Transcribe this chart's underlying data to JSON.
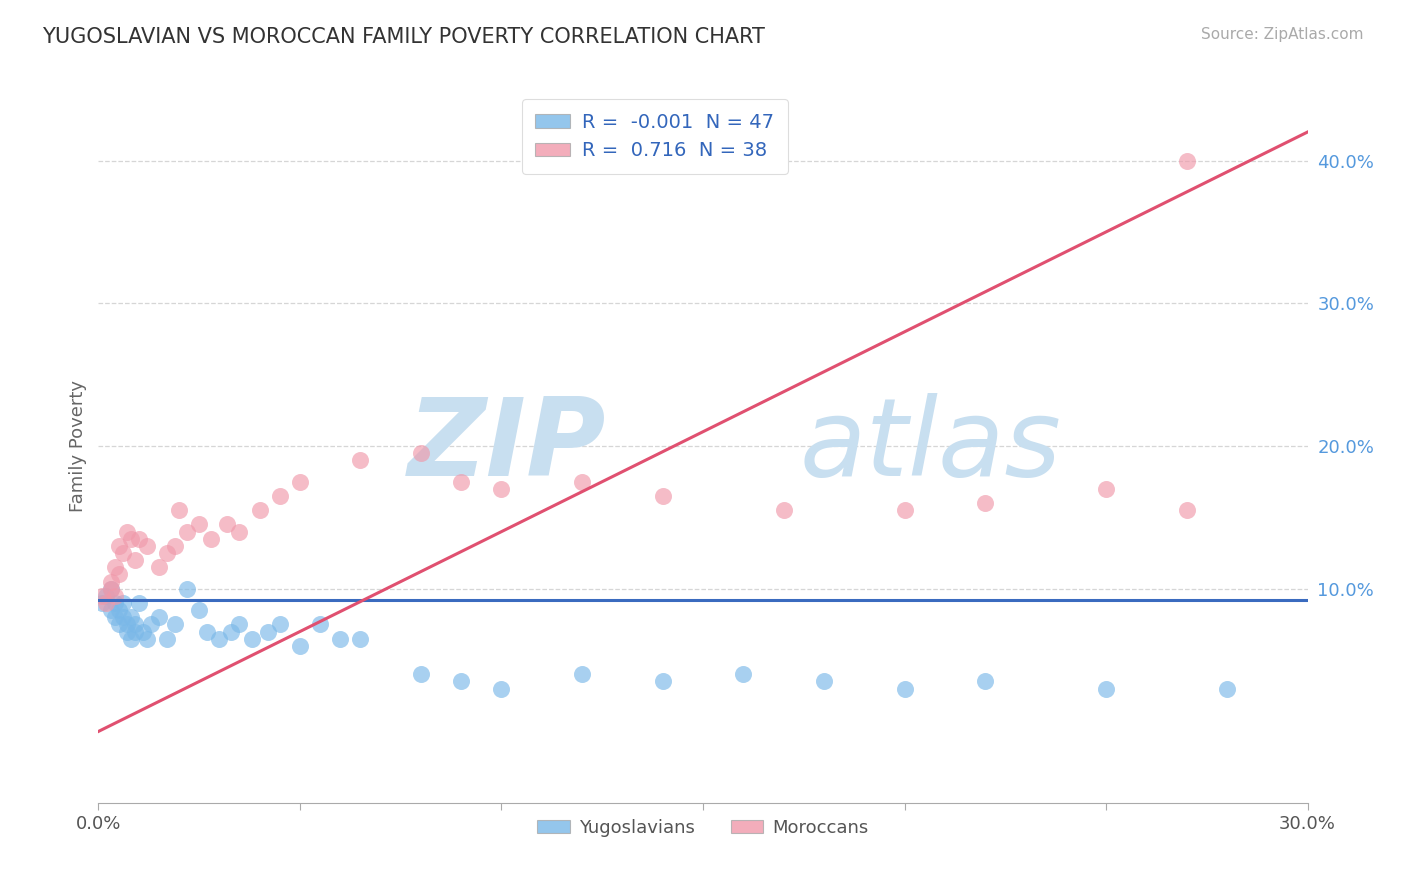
{
  "title": "YUGOSLAVIAN VS MOROCCAN FAMILY POVERTY CORRELATION CHART",
  "source": "Source: ZipAtlas.com",
  "ylabel": "Family Poverty",
  "xlim": [
    0.0,
    0.3
  ],
  "ylim": [
    -0.05,
    0.45
  ],
  "background_color": "#ffffff",
  "grid_color": "#cccccc",
  "yugoslavian_color": "#7ab8e8",
  "moroccan_color": "#f099aa",
  "trendline_yug_color": "#3a6bbf",
  "trendline_mor_color": "#e05070",
  "watermark_zip": "ZIP",
  "watermark_atlas": "atlas",
  "watermark_color": "#c8dff0",
  "r_yug": -0.001,
  "r_mor": 0.716,
  "n_yug": 47,
  "n_mor": 38,
  "trendline_yug": [
    0.0,
    0.3,
    0.092,
    0.092
  ],
  "trendline_mor": [
    0.0,
    0.3,
    0.0,
    0.42
  ],
  "yugoslavian_x": [
    0.001,
    0.002,
    0.003,
    0.003,
    0.004,
    0.004,
    0.005,
    0.005,
    0.006,
    0.006,
    0.007,
    0.007,
    0.008,
    0.008,
    0.009,
    0.009,
    0.01,
    0.011,
    0.012,
    0.013,
    0.015,
    0.017,
    0.019,
    0.022,
    0.025,
    0.027,
    0.03,
    0.033,
    0.035,
    0.038,
    0.042,
    0.045,
    0.05,
    0.055,
    0.06,
    0.065,
    0.08,
    0.09,
    0.1,
    0.12,
    0.14,
    0.16,
    0.18,
    0.2,
    0.22,
    0.25,
    0.28
  ],
  "yugoslavian_y": [
    0.09,
    0.095,
    0.085,
    0.1,
    0.09,
    0.08,
    0.075,
    0.085,
    0.09,
    0.08,
    0.075,
    0.07,
    0.08,
    0.065,
    0.07,
    0.075,
    0.09,
    0.07,
    0.065,
    0.075,
    0.08,
    0.065,
    0.075,
    0.1,
    0.085,
    0.07,
    0.065,
    0.07,
    0.075,
    0.065,
    0.07,
    0.075,
    0.06,
    0.075,
    0.065,
    0.065,
    0.04,
    0.035,
    0.03,
    0.04,
    0.035,
    0.04,
    0.035,
    0.03,
    0.035,
    0.03,
    0.03
  ],
  "moroccan_x": [
    0.001,
    0.002,
    0.003,
    0.003,
    0.004,
    0.004,
    0.005,
    0.005,
    0.006,
    0.007,
    0.008,
    0.009,
    0.01,
    0.012,
    0.015,
    0.017,
    0.019,
    0.02,
    0.022,
    0.025,
    0.028,
    0.032,
    0.035,
    0.04,
    0.045,
    0.05,
    0.065,
    0.08,
    0.09,
    0.1,
    0.12,
    0.14,
    0.17,
    0.2,
    0.22,
    0.25,
    0.27,
    0.27
  ],
  "moroccan_y": [
    0.095,
    0.09,
    0.1,
    0.105,
    0.115,
    0.095,
    0.13,
    0.11,
    0.125,
    0.14,
    0.135,
    0.12,
    0.135,
    0.13,
    0.115,
    0.125,
    0.13,
    0.155,
    0.14,
    0.145,
    0.135,
    0.145,
    0.14,
    0.155,
    0.165,
    0.175,
    0.19,
    0.195,
    0.175,
    0.17,
    0.175,
    0.165,
    0.155,
    0.155,
    0.16,
    0.17,
    0.155,
    0.4
  ]
}
